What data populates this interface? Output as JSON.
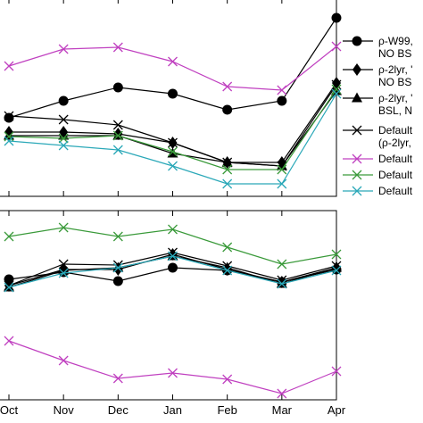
{
  "chart_data": [
    {
      "type": "line",
      "categories": [
        "Oct",
        "Nov",
        "Dec",
        "Jan",
        "Feb",
        "Mar",
        "Apr"
      ],
      "grid": false,
      "legend_placement": "right",
      "series": [
        {
          "name": "",
          "color": "#000000",
          "marker": "circle",
          "values": [
            132,
            113,
            98,
            105,
            123,
            113,
            20
          ]
        },
        {
          "name": "",
          "color": "#000000",
          "marker": "diamond",
          "values": [
            148,
            148,
            150,
            160,
            182,
            182,
            93
          ]
        },
        {
          "name": "",
          "color": "#000000",
          "marker": "triangle",
          "values": [
            152,
            152,
            152,
            172,
            182,
            186,
            102
          ]
        },
        {
          "name": "",
          "color": "#000000",
          "marker": "x",
          "values": [
            130,
            134,
            140,
            160,
            182,
            186,
            95
          ]
        },
        {
          "name": "",
          "color": "#c040c0",
          "marker": "x",
          "values": [
            74,
            55,
            53,
            69,
            97,
            101,
            52
          ]
        },
        {
          "name": "",
          "color": "#3a9a3a",
          "marker": "x",
          "values": [
            153,
            155,
            152,
            170,
            190,
            190,
            100
          ]
        },
        {
          "name": "",
          "color": "#2aa8b8",
          "marker": "x",
          "values": [
            158,
            163,
            168,
            186,
            206,
            206,
            105
          ]
        }
      ]
    },
    {
      "type": "line",
      "categories": [
        "Oct",
        "Nov",
        "Dec",
        "Jan",
        "Feb",
        "Mar",
        "Apr"
      ],
      "grid": false,
      "series": [
        {
          "name": "",
          "color": "#000000",
          "marker": "circle",
          "values": [
            313,
            305,
            315,
            300,
            303,
            316,
            302
          ]
        },
        {
          "name": "",
          "color": "#000000",
          "marker": "diamond",
          "values": [
            320,
            302,
            302,
            285,
            302,
            316,
            300
          ]
        },
        {
          "name": "",
          "color": "#000000",
          "marker": "triangle",
          "values": [
            322,
            303,
            300,
            287,
            300,
            318,
            300
          ]
        },
        {
          "name": "",
          "color": "#000000",
          "marker": "x",
          "values": [
            320,
            296,
            297,
            283,
            298,
            314,
            298
          ]
        },
        {
          "name": "",
          "color": "#c040c0",
          "marker": "x",
          "values": [
            382,
            404,
            424,
            418,
            425,
            441,
            416
          ]
        },
        {
          "name": "",
          "color": "#3a9a3a",
          "marker": "x",
          "values": [
            265,
            255,
            265,
            257,
            277,
            296,
            285
          ]
        },
        {
          "name": "",
          "color": "#2aa8b8",
          "marker": "x",
          "values": [
            322,
            306,
            300,
            287,
            303,
            318,
            303
          ]
        }
      ]
    }
  ],
  "legend": [
    {
      "line1": "ρ-W99,",
      "line2": "NO BS",
      "color": "#000000",
      "marker": "circle"
    },
    {
      "line1": "ρ-2lyr, '",
      "line2": "NO BS",
      "color": "#000000",
      "marker": "diamond"
    },
    {
      "line1": "ρ-2lyr, '",
      "line2": "BSL, N",
      "color": "#000000",
      "marker": "triangle"
    },
    {
      "line1": "Default",
      "line2": "(ρ-2lyr,",
      "color": "#000000",
      "marker": "x"
    },
    {
      "line1": "Default",
      "line2": "",
      "color": "#c040c0",
      "marker": "x"
    },
    {
      "line1": "Default",
      "line2": "",
      "color": "#3a9a3a",
      "marker": "x"
    },
    {
      "line1": "Default",
      "line2": "",
      "color": "#2aa8b8",
      "marker": "x"
    }
  ]
}
